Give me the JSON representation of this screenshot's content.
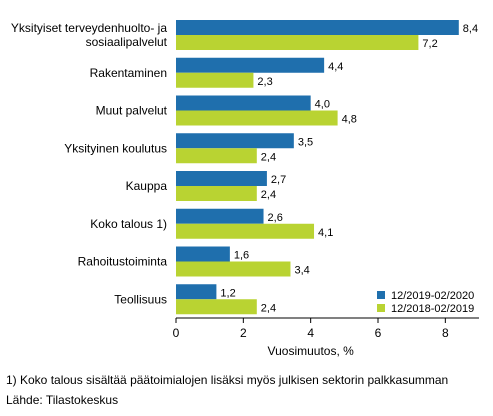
{
  "chart_data": {
    "type": "bar",
    "orientation": "horizontal",
    "categories": [
      [
        "Yksityiset terveydenhuolto- ja",
        "sosiaalipalvelut"
      ],
      [
        "Rakentaminen"
      ],
      [
        "Muut palvelut"
      ],
      [
        "Yksityinen koulutus"
      ],
      [
        "Kauppa"
      ],
      [
        "Koko talous 1)"
      ],
      [
        "Rahoitustoiminta"
      ],
      [
        "Teollisuus"
      ]
    ],
    "series": [
      {
        "name": "12/2019-02/2020",
        "color": "#1f6fad",
        "values": [
          8.4,
          4.4,
          4.0,
          3.5,
          2.7,
          2.6,
          1.6,
          1.2
        ],
        "labels": [
          "8,4",
          "4,4",
          "4,0",
          "3,5",
          "2,7",
          "2,6",
          "1,6",
          "1,2"
        ]
      },
      {
        "name": "12/2018-02/2019",
        "color": "#b9d332",
        "values": [
          7.2,
          2.3,
          4.8,
          2.4,
          2.4,
          4.1,
          3.4,
          2.4
        ],
        "labels": [
          "7,2",
          "2,3",
          "4,8",
          "2,4",
          "2,4",
          "4,1",
          "3,4",
          "2,4"
        ]
      }
    ],
    "xlim": [
      0,
      9
    ],
    "xticks": [
      0,
      2,
      4,
      6,
      8
    ],
    "xticklabels": [
      "0",
      "2",
      "4",
      "6",
      "8"
    ],
    "xlabel": "Vuosimuutos, %",
    "legend_position": "bottom-right",
    "grid": false
  },
  "footnote": "1) Koko talous sisältää päätoimialojen lisäksi myös julkisen sektorin palkkasumman",
  "source": "Lähde: Tilastokeskus"
}
